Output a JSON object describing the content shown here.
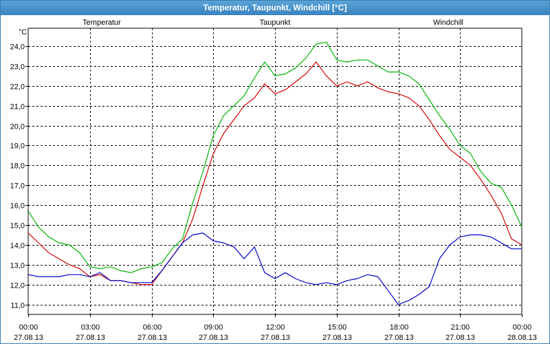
{
  "window": {
    "title": "Temperatur, Taupunkt, Windchill [°C]"
  },
  "chart_data": {
    "type": "line",
    "title": "Temperatur, Taupunkt, Windchill [°C]",
    "ylabel": "°C",
    "xlabel": "",
    "ylim": [
      10.5,
      24.9
    ],
    "xlim_hours": [
      0,
      24
    ],
    "grid": true,
    "legend_placement": "top",
    "y_ticks": [
      "11,0",
      "12,0",
      "13,0",
      "14,0",
      "15,0",
      "16,0",
      "17,0",
      "18,0",
      "19,0",
      "20,0",
      "21,0",
      "22,0",
      "23,0",
      "24,0"
    ],
    "x_ticks": [
      {
        "time": "00:00",
        "date": "27.08.13"
      },
      {
        "time": "03:00",
        "date": "27.08.13"
      },
      {
        "time": "06:00",
        "date": "27.08.13"
      },
      {
        "time": "09:00",
        "date": "27.08.13"
      },
      {
        "time": "12:00",
        "date": "27.08.13"
      },
      {
        "time": "15:00",
        "date": "27.08.13"
      },
      {
        "time": "18:00",
        "date": "27.08.13"
      },
      {
        "time": "21:00",
        "date": "27.08.13"
      },
      {
        "time": "00:00",
        "date": "28.08.13"
      }
    ],
    "x_hours": [
      0,
      0.5,
      1,
      1.5,
      2,
      2.5,
      3,
      3.5,
      4,
      4.5,
      5,
      5.5,
      6,
      6.5,
      7,
      7.5,
      8,
      8.5,
      9,
      9.5,
      10,
      10.5,
      11,
      11.5,
      12,
      12.5,
      13,
      13.5,
      14,
      14.5,
      15,
      15.5,
      16,
      16.5,
      17,
      17.5,
      18,
      18.5,
      19,
      19.5,
      20,
      20.5,
      21,
      21.5,
      22,
      22.5,
      23,
      23.5,
      24
    ],
    "series": [
      {
        "name": "Temperatur",
        "color": "#d40000",
        "values": [
          14.6,
          14.1,
          13.6,
          13.3,
          13.0,
          12.8,
          12.4,
          12.5,
          12.2,
          12.2,
          12.1,
          12.0,
          12.0,
          12.7,
          13.4,
          14.1,
          15.3,
          17.0,
          18.6,
          19.6,
          20.3,
          21.0,
          21.4,
          22.1,
          21.6,
          21.8,
          22.2,
          22.6,
          23.2,
          22.5,
          22.0,
          22.2,
          22.0,
          22.2,
          21.9,
          21.7,
          21.6,
          21.4,
          21.0,
          20.3,
          19.5,
          18.8,
          18.4,
          18.0,
          17.3,
          16.5,
          15.6,
          14.3,
          14.0
        ]
      },
      {
        "name": "Taupunkt",
        "color": "#0000c8",
        "values": [
          12.5,
          12.4,
          12.4,
          12.4,
          12.5,
          12.5,
          12.4,
          12.6,
          12.2,
          12.2,
          12.1,
          12.1,
          12.1,
          12.7,
          13.4,
          14.1,
          14.5,
          14.6,
          14.2,
          14.1,
          13.9,
          13.3,
          13.9,
          12.6,
          12.3,
          12.6,
          12.3,
          12.1,
          12.0,
          12.1,
          12.0,
          12.2,
          12.3,
          12.5,
          12.4,
          11.7,
          11.0,
          11.2,
          11.5,
          11.9,
          13.3,
          14.0,
          14.4,
          14.5,
          14.5,
          14.4,
          14.1,
          13.8,
          13.8
        ]
      },
      {
        "name": "Windchill",
        "color": "#00b400",
        "values": [
          15.7,
          14.9,
          14.4,
          14.1,
          14.0,
          13.6,
          12.9,
          12.8,
          12.9,
          12.7,
          12.6,
          12.8,
          12.9,
          13.1,
          13.8,
          14.3,
          16.1,
          17.7,
          19.5,
          20.5,
          21.0,
          21.5,
          22.4,
          23.2,
          22.5,
          22.6,
          22.9,
          23.4,
          24.1,
          24.2,
          23.3,
          23.2,
          23.3,
          23.3,
          23.0,
          22.7,
          22.7,
          22.5,
          22.1,
          21.3,
          20.5,
          19.8,
          19.0,
          18.6,
          17.7,
          17.1,
          16.9,
          16.0,
          14.9
        ]
      }
    ]
  }
}
